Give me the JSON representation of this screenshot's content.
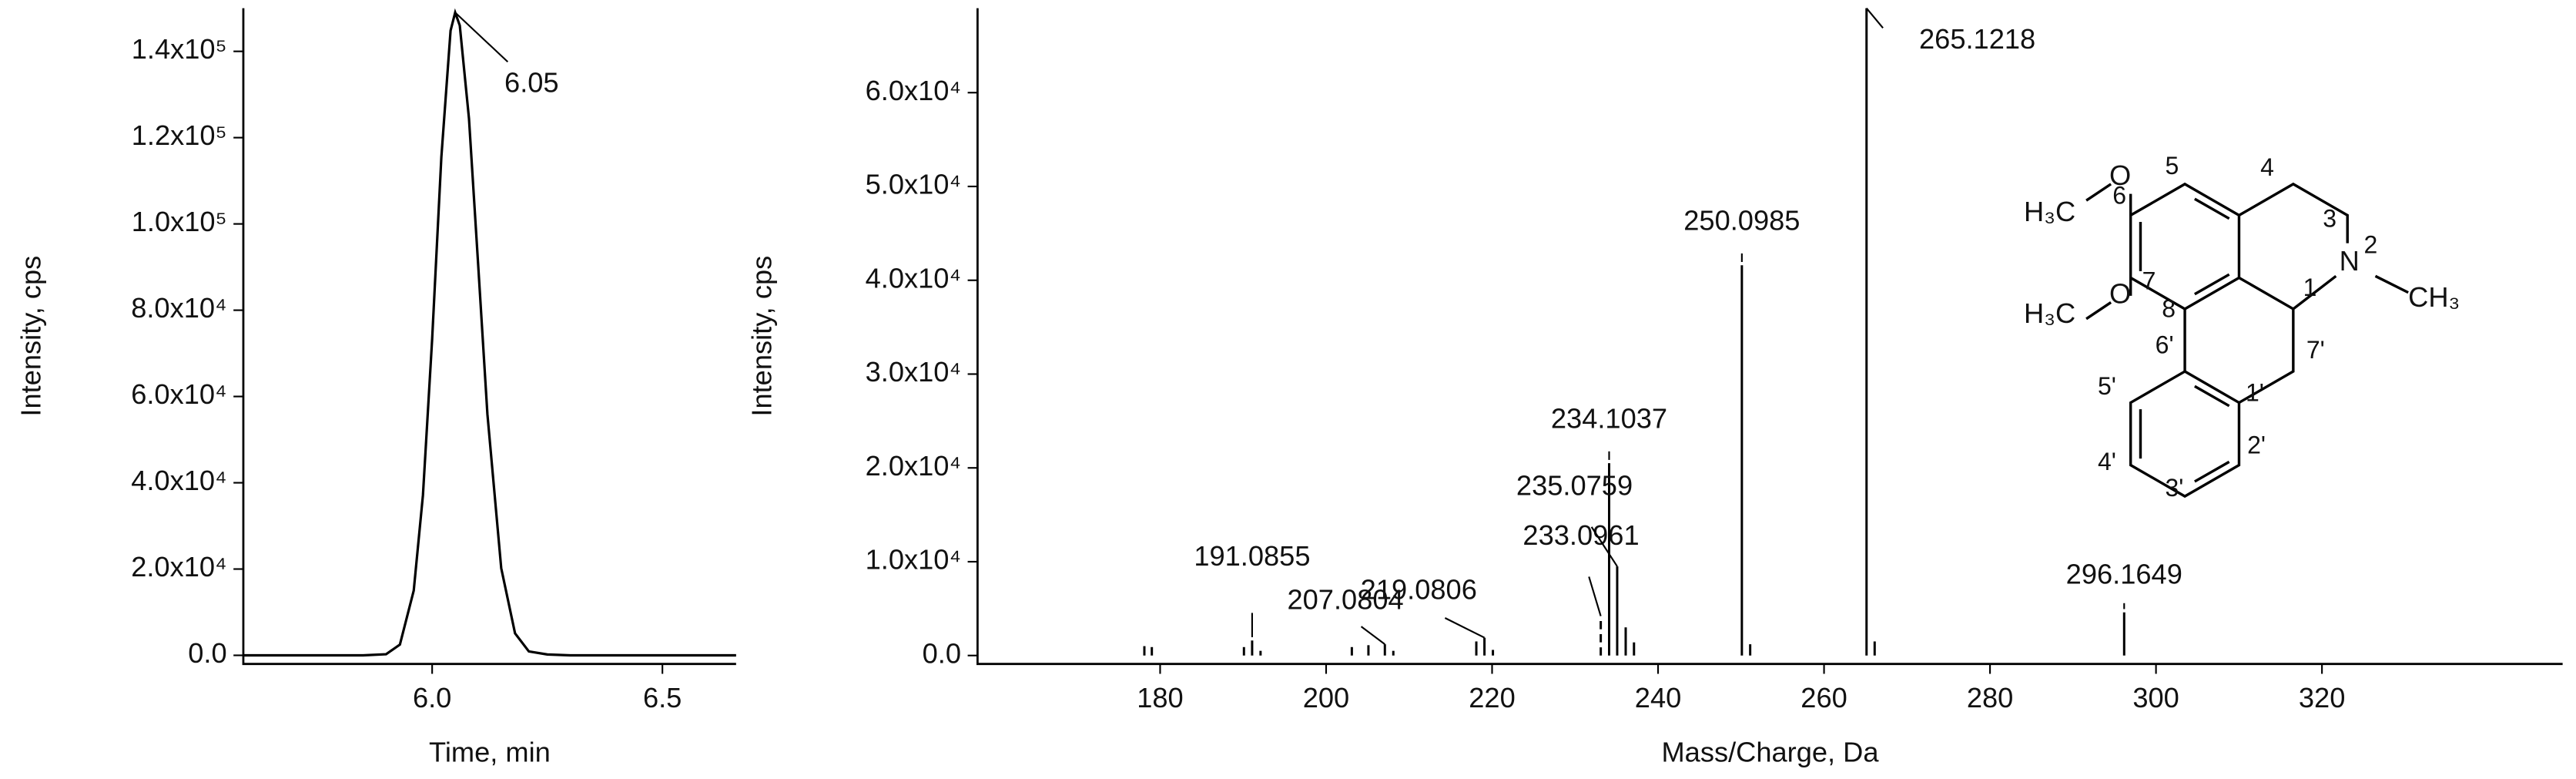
{
  "chart_data": [
    {
      "type": "line",
      "y_label": "Intensity, cps",
      "x_label": "Time, min",
      "x": [
        5.59,
        5.7,
        5.8,
        5.85,
        5.9,
        5.93,
        5.96,
        5.98,
        6.0,
        6.02,
        6.04,
        6.05,
        6.06,
        6.08,
        6.1,
        6.12,
        6.15,
        6.18,
        6.21,
        6.25,
        6.3,
        6.4,
        6.5,
        6.66
      ],
      "series": [
        {
          "color": "#000000",
          "values": [
            0,
            0,
            0,
            0,
            250,
            2500,
            15000,
            37100,
            73300,
            115500,
            144800,
            149000,
            146000,
            124400,
            90400,
            55900,
            20200,
            5100,
            900,
            200,
            0,
            0,
            0,
            0
          ]
        }
      ],
      "annotation": "6.05",
      "xlim": [
        5.59,
        6.66
      ],
      "xticks": [
        6.0,
        6.5
      ],
      "ylim": [
        -2000,
        150000
      ],
      "yticks": [
        {
          "value": 0,
          "label": "0.0"
        },
        {
          "value": 20000,
          "label": "2.0x10⁴"
        },
        {
          "value": 40000,
          "label": "4.0x10⁴"
        },
        {
          "value": 60000,
          "label": "6.0x10⁴"
        },
        {
          "value": 80000,
          "label": "8.0x10⁴"
        },
        {
          "value": 100000,
          "label": "1.0x10⁵"
        },
        {
          "value": 120000,
          "label": "1.2x10⁵"
        },
        {
          "value": 140000,
          "label": "1.4x10⁵"
        }
      ]
    },
    {
      "type": "stick",
      "y_label": "Intensity, cps",
      "x_label": "Mass/Charge, Da",
      "x": [
        178.1,
        179.0,
        190.1,
        191.0855,
        192.1,
        203.1,
        205.1,
        207.0804,
        208.1,
        218.1,
        219.0806,
        220.1,
        233.0961,
        234.1037,
        235.0759,
        236.1,
        237.1,
        250.0985,
        251.1,
        265.1218,
        266.1,
        296.1649
      ],
      "x_labels": [
        null,
        null,
        null,
        "191.0855",
        null,
        null,
        null,
        "207.0804",
        null,
        null,
        "219.0806",
        null,
        "233.0961",
        "234.1037",
        "235.0759",
        null,
        null,
        "250.0985",
        null,
        "265.1218",
        null,
        "296.1649"
      ],
      "series": [
        {
          "color": "#000000",
          "values": [
            1000,
            900,
            900,
            1600,
            500,
            900,
            1100,
            1200,
            500,
            1500,
            1900,
            600,
            4200,
            20500,
            9500,
            3000,
            1400,
            41600,
            1200,
            69000,
            1500,
            4600
          ]
        }
      ],
      "xlim": [
        158,
        349
      ],
      "xticks": [
        180,
        200,
        220,
        240,
        260,
        280,
        300,
        320
      ],
      "ylim": [
        -900,
        69000
      ],
      "yticks": [
        {
          "value": 0,
          "label": "0.0"
        },
        {
          "value": 10000,
          "label": "1.0x10⁴"
        },
        {
          "value": 20000,
          "label": "2.0x10⁴"
        },
        {
          "value": 30000,
          "label": "3.0x10⁴"
        },
        {
          "value": 40000,
          "label": "4.0x10⁴"
        },
        {
          "value": 50000,
          "label": "5.0x10⁴"
        },
        {
          "value": 60000,
          "label": "6.0x10⁴"
        }
      ]
    }
  ],
  "structure": {
    "labels": [
      "H₃C",
      "O",
      "6",
      "5",
      "4",
      "3",
      "N",
      "2",
      "CH₃",
      "H₃C",
      "O",
      "7",
      "8",
      "1",
      "7'",
      "6'",
      "1'",
      "5'",
      "4'",
      "3'",
      "2'"
    ]
  }
}
